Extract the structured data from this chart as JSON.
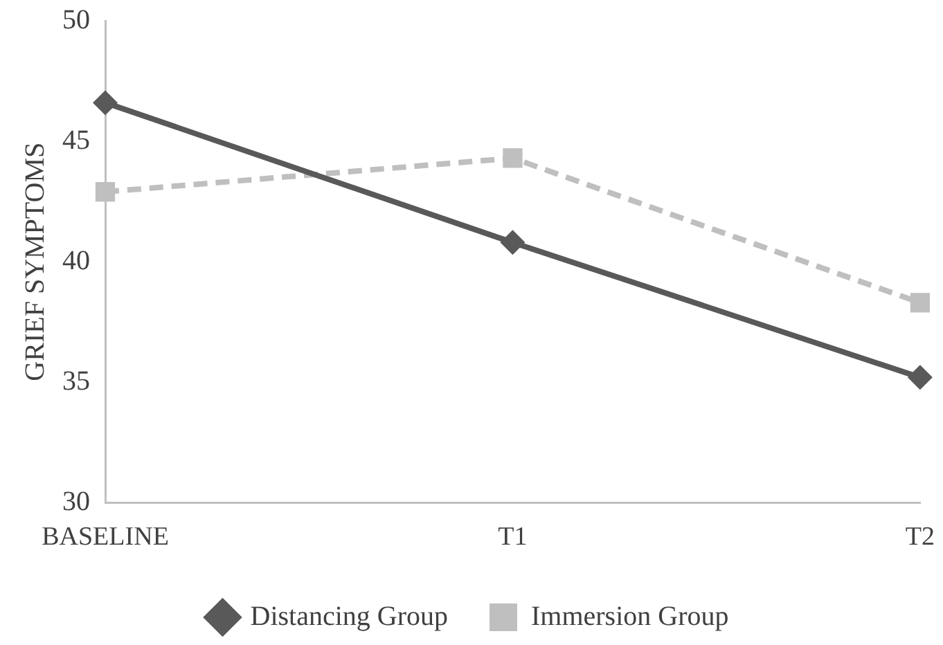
{
  "chart_data": {
    "type": "line",
    "ylabel": "GRIEF SYMPTOMS",
    "categories": [
      "BASELINE",
      "T1",
      "T2"
    ],
    "series": [
      {
        "name": "Distancing Group",
        "color": "#595959",
        "values": [
          46.6,
          40.8,
          35.2
        ],
        "marker": "diamond",
        "line_style": "solid"
      },
      {
        "name": "Immersion Group",
        "color": "#bfbfbf",
        "values": [
          42.9,
          44.3,
          38.3
        ],
        "marker": "square",
        "line_style": "dashed"
      }
    ],
    "ylim": [
      30,
      50
    ],
    "yticks": [
      30,
      35,
      40,
      45,
      50
    ],
    "grid": false,
    "legend": "bottom"
  }
}
